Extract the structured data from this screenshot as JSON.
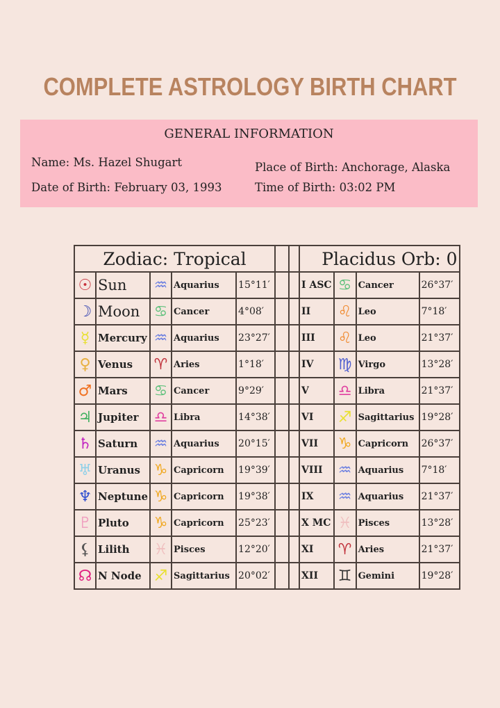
{
  "title": "COMPLETE ASTROLOGY BIRTH CHART",
  "general": {
    "heading": "GENERAL INFORMATION",
    "name": "Name: Ms. Hazel Shugart",
    "dob": "Date of Birth: February 03, 1993",
    "place": "Place of Birth: Anchorage, Alaska",
    "time": "Time of Birth: 03:02 PM"
  },
  "planets_header": "Zodiac: Tropical",
  "houses_header": "Placidus Orb: 0",
  "colors": {
    "background": "#f6e6df",
    "info_box": "#fbbcc7",
    "title": "#b8835f"
  },
  "planets": [
    {
      "icon": "sun-icon",
      "glyph": "☉",
      "color": "#c8303a",
      "name": "Sun",
      "sign": "Aquarius",
      "sign_icon": "aquarius-icon",
      "sign_glyph": "♒",
      "sign_color": "#6a7ee0",
      "degree": "15°11′"
    },
    {
      "icon": "moon-icon",
      "glyph": "☽",
      "color": "#3040b0",
      "name": "Moon",
      "sign": "Cancer",
      "sign_icon": "cancer-icon",
      "sign_glyph": "♋",
      "sign_color": "#5cc07a",
      "degree": "4°08′"
    },
    {
      "icon": "mercury-icon",
      "glyph": "☿",
      "color": "#e8e030",
      "name": "Mercury",
      "sign": "Aquarius",
      "sign_icon": "aquarius-icon",
      "sign_glyph": "♒",
      "sign_color": "#6a7ee0",
      "degree": "23°27′"
    },
    {
      "icon": "venus-icon",
      "glyph": "♀",
      "color": "#e8b040",
      "name": "Venus",
      "sign": "Aries",
      "sign_icon": "aries-icon",
      "sign_glyph": "♈",
      "sign_color": "#c0303a",
      "degree": "1°18′"
    },
    {
      "icon": "mars-icon",
      "glyph": "♂",
      "color": "#f07020",
      "name": "Mars",
      "sign": "Cancer",
      "sign_icon": "cancer-icon",
      "sign_glyph": "♋",
      "sign_color": "#5cc07a",
      "degree": "9°29′"
    },
    {
      "icon": "jupiter-icon",
      "glyph": "♃",
      "color": "#40b060",
      "name": "Jupiter",
      "sign": "Libra",
      "sign_icon": "libra-icon",
      "sign_glyph": "♎",
      "sign_color": "#e040a0",
      "degree": "14°38′"
    },
    {
      "icon": "saturn-icon",
      "glyph": "♄",
      "color": "#c020c0",
      "name": "Saturn",
      "sign": "Aquarius",
      "sign_icon": "aquarius-icon",
      "sign_glyph": "♒",
      "sign_color": "#6a7ee0",
      "degree": "20°15′"
    },
    {
      "icon": "uranus-icon",
      "glyph": "♅",
      "color": "#90d0e8",
      "name": "Uranus",
      "sign": "Capricorn",
      "sign_icon": "capricorn-icon",
      "sign_glyph": "♑",
      "sign_color": "#f0a820",
      "degree": "19°39′"
    },
    {
      "icon": "neptune-icon",
      "glyph": "♆",
      "color": "#3050d0",
      "name": "Neptune",
      "sign": "Capricorn",
      "sign_icon": "capricorn-icon",
      "sign_glyph": "♑",
      "sign_color": "#f0a820",
      "degree": "19°38′"
    },
    {
      "icon": "pluto-icon",
      "glyph": "♇",
      "color": "#f0a0c0",
      "name": "Pluto",
      "sign": "Capricorn",
      "sign_icon": "capricorn-icon",
      "sign_glyph": "♑",
      "sign_color": "#f0a820",
      "degree": "25°23′"
    },
    {
      "icon": "lilith-icon",
      "glyph": "⚸",
      "color": "#555555",
      "name": "Lilith",
      "sign": "Pisces",
      "sign_icon": "pisces-icon",
      "sign_glyph": "♓",
      "sign_color": "#f0c0c0",
      "degree": "12°20′"
    },
    {
      "icon": "north-node-icon",
      "glyph": "☊",
      "color": "#e02080",
      "name": "N Node",
      "sign": "Sagittarius",
      "sign_icon": "sagittarius-icon",
      "sign_glyph": "♐",
      "sign_color": "#e8e030",
      "degree": "20°02′"
    }
  ],
  "houses": [
    {
      "house": "I ASC",
      "sign": "Cancer",
      "sign_icon": "cancer-icon",
      "sign_glyph": "♋",
      "sign_color": "#5cc07a",
      "degree": "26°37′"
    },
    {
      "house": "II",
      "sign": "Leo",
      "sign_icon": "leo-icon",
      "sign_glyph": "♌",
      "sign_color": "#f08a30",
      "degree": "7°18′"
    },
    {
      "house": "III",
      "sign": "Leo",
      "sign_icon": "leo-icon",
      "sign_glyph": "♌",
      "sign_color": "#f08a30",
      "degree": "21°37′"
    },
    {
      "house": "IV",
      "sign": "Virgo",
      "sign_icon": "virgo-icon",
      "sign_glyph": "♍",
      "sign_color": "#5060d0",
      "degree": "13°28′"
    },
    {
      "house": "V",
      "sign": "Libra",
      "sign_icon": "libra-icon",
      "sign_glyph": "♎",
      "sign_color": "#e040a0",
      "degree": "21°37′"
    },
    {
      "house": "VI",
      "sign": "Sagittarius",
      "sign_icon": "sagittarius-icon",
      "sign_glyph": "♐",
      "sign_color": "#e8e030",
      "degree": "19°28′"
    },
    {
      "house": "VII",
      "sign": "Capricorn",
      "sign_icon": "capricorn-icon",
      "sign_glyph": "♑",
      "sign_color": "#f0a820",
      "degree": "26°37′"
    },
    {
      "house": "VIII",
      "sign": "Aquarius",
      "sign_icon": "aquarius-icon",
      "sign_glyph": "♒",
      "sign_color": "#6a7ee0",
      "degree": "7°18′"
    },
    {
      "house": "IX",
      "sign": "Aquarius",
      "sign_icon": "aquarius-icon",
      "sign_glyph": "♒",
      "sign_color": "#6a7ee0",
      "degree": "21°37′"
    },
    {
      "house": "X MC",
      "sign": "Pisces",
      "sign_icon": "pisces-icon",
      "sign_glyph": "♓",
      "sign_color": "#f0c0c0",
      "degree": "13°28′"
    },
    {
      "house": "XI",
      "sign": "Aries",
      "sign_icon": "aries-icon",
      "sign_glyph": "♈",
      "sign_color": "#c0303a",
      "degree": "21°37′"
    },
    {
      "house": "XII",
      "sign": "Gemini",
      "sign_icon": "gemini-icon",
      "sign_glyph": "♊",
      "sign_color": "#333333",
      "degree": "19°28′"
    }
  ]
}
